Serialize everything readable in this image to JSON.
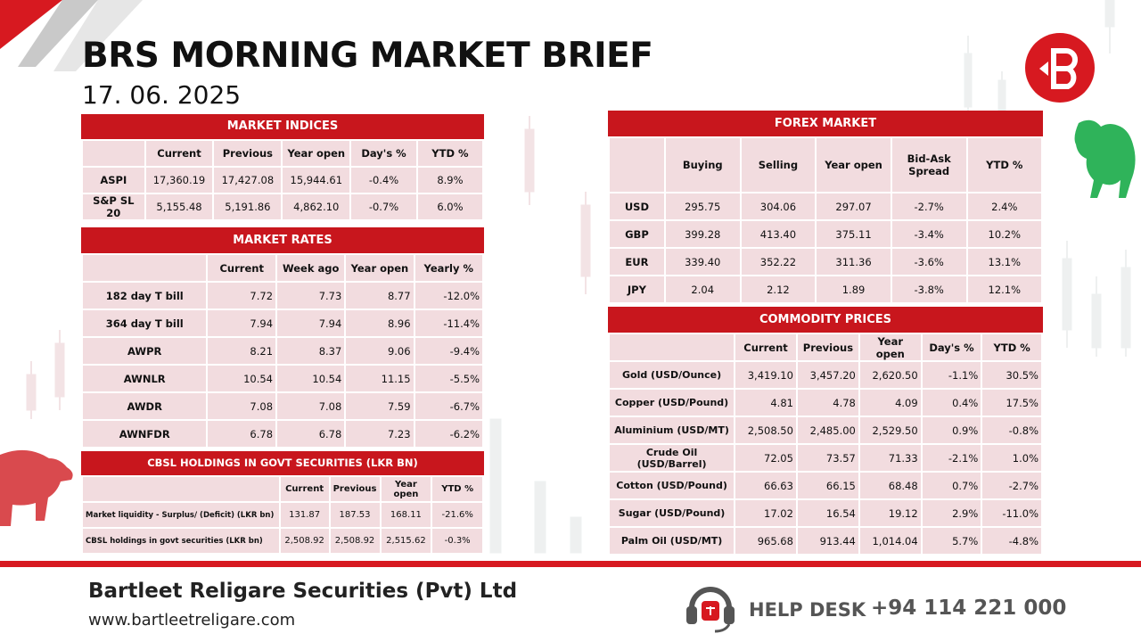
{
  "header": {
    "title": "BRS MORNING MARKET BRIEF",
    "date": "17. 06. 2025"
  },
  "colors": {
    "brand_red": "#c8161d",
    "cell_bg": "#f2dcdf",
    "bull_green": "#2fb35a"
  },
  "market_indices": {
    "title": "MARKET INDICES",
    "columns": [
      "",
      "Current",
      "Previous",
      "Year open",
      "Day's %",
      "YTD %"
    ],
    "rows": [
      [
        "ASPI",
        "17,360.19",
        "17,427.08",
        "15,944.61",
        "-0.4%",
        "8.9%"
      ],
      [
        "S&P SL 20",
        "5,155.48",
        "5,191.86",
        "4,862.10",
        "-0.7%",
        "6.0%"
      ]
    ]
  },
  "market_rates": {
    "title": "MARKET RATES",
    "columns": [
      "",
      "Current",
      "Week ago",
      "Year open",
      "Yearly %"
    ],
    "rows": [
      [
        "182 day T bill",
        "7.72",
        "7.73",
        "8.77",
        "-12.0%"
      ],
      [
        "364 day T bill",
        "7.94",
        "7.94",
        "8.96",
        "-11.4%"
      ],
      [
        "AWPR",
        "8.21",
        "8.37",
        "9.06",
        "-9.4%"
      ],
      [
        "AWNLR",
        "10.54",
        "10.54",
        "11.15",
        "-5.5%"
      ],
      [
        "AWDR",
        "7.08",
        "7.08",
        "7.59",
        "-6.7%"
      ],
      [
        "AWNFDR",
        "6.78",
        "6.78",
        "7.23",
        "-6.2%"
      ]
    ]
  },
  "cbsl_holdings": {
    "title": "CBSL HOLDINGS IN GOVT SECURITIES (LKR BN)",
    "columns": [
      "",
      "Current",
      "Previous",
      "Year open",
      "YTD %"
    ],
    "rows": [
      [
        "Market liquidity - Surplus/ (Deficit) (LKR bn)",
        "131.87",
        "187.53",
        "168.11",
        "-21.6%"
      ],
      [
        "CBSL holdings in govt securities (LKR bn)",
        "2,508.92",
        "2,508.92",
        "2,515.62",
        "-0.3%"
      ]
    ]
  },
  "forex_market": {
    "title": "FOREX MARKET",
    "columns": [
      "",
      "Buying",
      "Selling",
      "Year open",
      "Bid-Ask Spread",
      "YTD %"
    ],
    "rows": [
      [
        "USD",
        "295.75",
        "304.06",
        "297.07",
        "-2.7%",
        "2.4%"
      ],
      [
        "GBP",
        "399.28",
        "413.40",
        "375.11",
        "-3.4%",
        "10.2%"
      ],
      [
        "EUR",
        "339.40",
        "352.22",
        "311.36",
        "-3.6%",
        "13.1%"
      ],
      [
        "JPY",
        "2.04",
        "2.12",
        "1.89",
        "-3.8%",
        "12.1%"
      ]
    ]
  },
  "commodity_prices": {
    "title": "COMMODITY PRICES",
    "columns": [
      "",
      "Current",
      "Previous",
      "Year open",
      "Day's %",
      "YTD %"
    ],
    "rows": [
      [
        "Gold (USD/Ounce)",
        "3,419.10",
        "3,457.20",
        "2,620.50",
        "-1.1%",
        "30.5%"
      ],
      [
        "Copper (USD/Pound)",
        "4.81",
        "4.78",
        "4.09",
        "0.4%",
        "17.5%"
      ],
      [
        "Aluminium (USD/MT)",
        "2,508.50",
        "2,485.00",
        "2,529.50",
        "0.9%",
        "-0.8%"
      ],
      [
        "Crude Oil (USD/Barrel)",
        "72.05",
        "73.57",
        "71.33",
        "-2.1%",
        "1.0%"
      ],
      [
        "Cotton (USD/Pound)",
        "66.63",
        "66.15",
        "68.48",
        "0.7%",
        "-2.7%"
      ],
      [
        "Sugar (USD/Pound)",
        "17.02",
        "16.54",
        "19.12",
        "2.9%",
        "-11.0%"
      ],
      [
        "Palm Oil (USD/MT)",
        "965.68",
        "913.44",
        "1,014.04",
        "5.7%",
        "-4.8%"
      ]
    ]
  },
  "footer": {
    "company": "Bartleet Religare Securities (Pvt) Ltd",
    "website": "www.bartleetreligare.com",
    "helpdesk_label": "HELP DESK",
    "helpdesk_phone": "+94 114 221 000",
    "helpdesk_icon": "headset-icon"
  },
  "logo": {
    "icon": "brs-logo-icon"
  }
}
